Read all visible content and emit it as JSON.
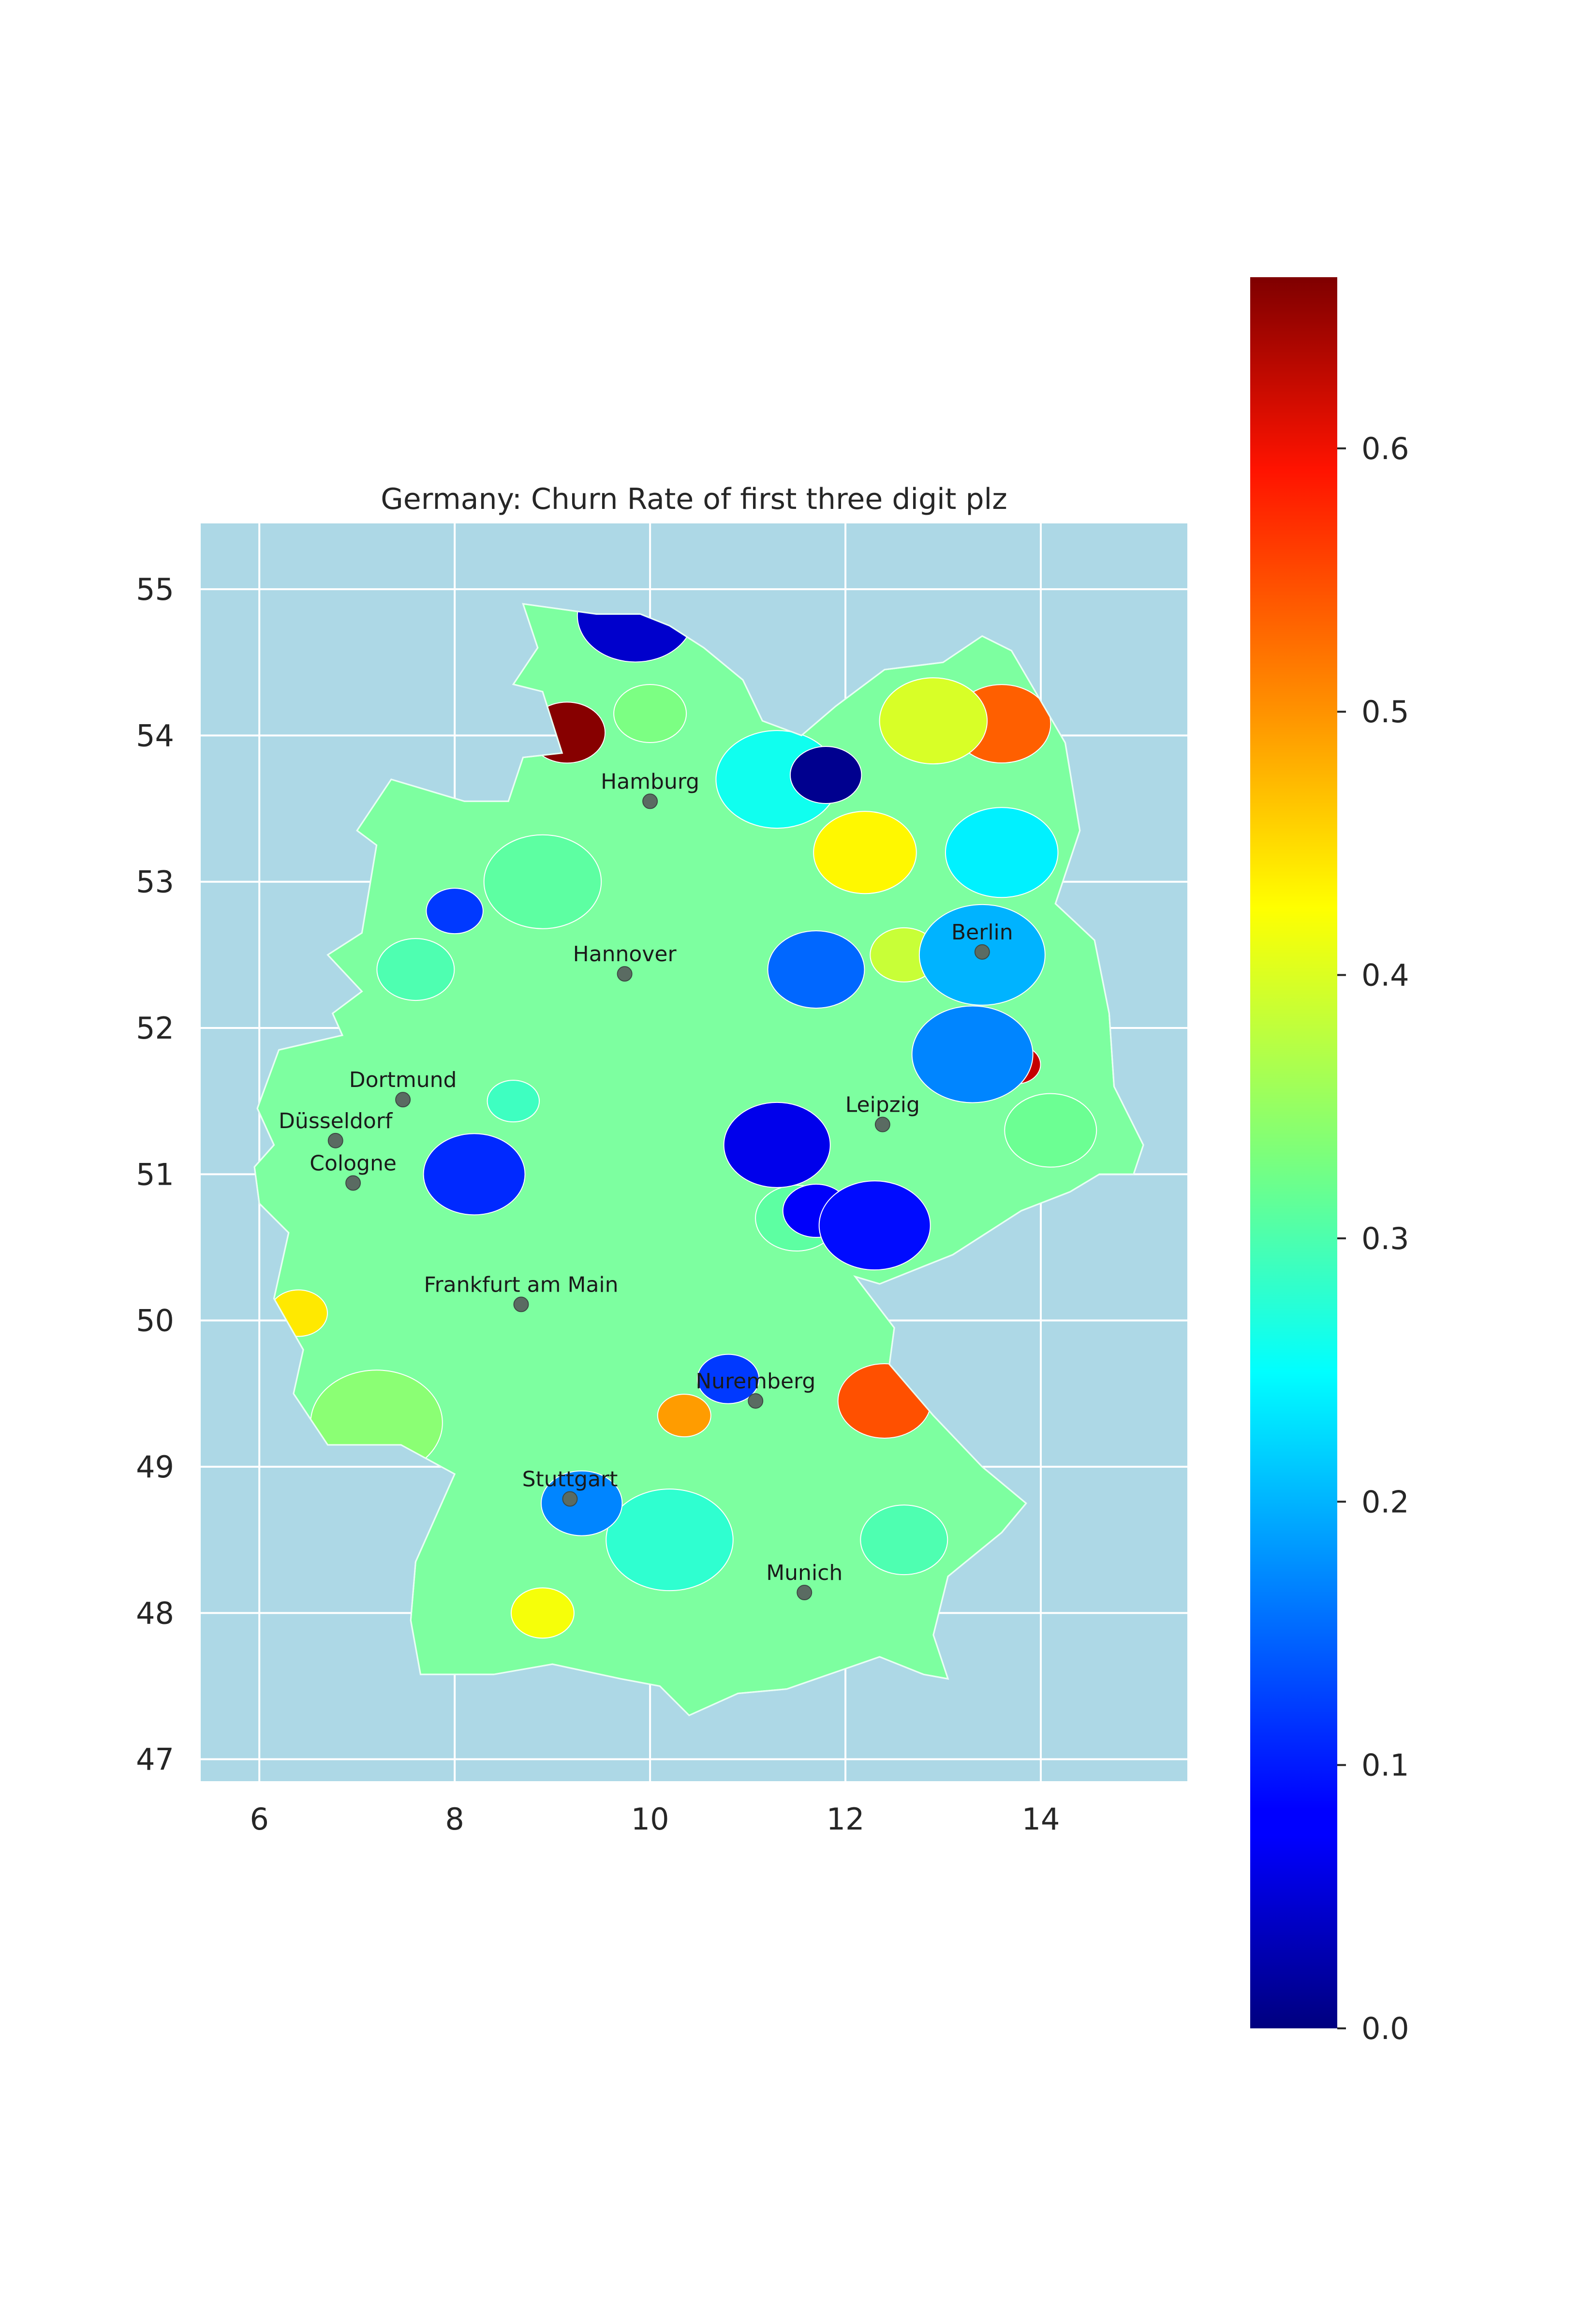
{
  "title": "Germany: Churn Rate of first three digit plz",
  "map": {
    "background": "#add8e6",
    "grid": true,
    "grid_color": "#ffffff",
    "xlim": [
      5.4,
      15.5
    ],
    "ylim": [
      46.85,
      55.45
    ],
    "x_ticks": [
      "6",
      "8",
      "10",
      "12",
      "14"
    ],
    "y_ticks": [
      "47",
      "48",
      "49",
      "50",
      "51",
      "52",
      "53",
      "54",
      "55"
    ]
  },
  "colorbar": {
    "colormap": "jet",
    "vmin": 0.0,
    "vmax": 0.665,
    "ticks": [
      "0.0",
      "0.1",
      "0.2",
      "0.3",
      "0.4",
      "0.5",
      "0.6"
    ]
  },
  "cities": [
    {
      "name": "Hamburg",
      "lon": 10.0,
      "lat": 53.55
    },
    {
      "name": "Berlin",
      "lon": 13.4,
      "lat": 52.52
    },
    {
      "name": "Hannover",
      "lon": 9.74,
      "lat": 52.37
    },
    {
      "name": "Dortmund",
      "lon": 7.47,
      "lat": 51.51
    },
    {
      "name": "Düsseldorf",
      "lon": 6.78,
      "lat": 51.23
    },
    {
      "name": "Leipzig",
      "lon": 12.38,
      "lat": 51.34
    },
    {
      "name": "Cologne",
      "lon": 6.96,
      "lat": 50.94
    },
    {
      "name": "Frankfurt am Main",
      "lon": 8.68,
      "lat": 50.11
    },
    {
      "name": "Nuremberg",
      "lon": 11.08,
      "lat": 49.45
    },
    {
      "name": "Stuttgart",
      "lon": 9.18,
      "lat": 48.78
    },
    {
      "name": "Munich",
      "lon": 11.58,
      "lat": 48.14
    }
  ],
  "regions_visible": [
    {
      "lon": 13.75,
      "lat": 51.75,
      "churn_rate": 0.62
    },
    {
      "lon": 12.4,
      "lat": 49.45,
      "churn_rate": 0.53
    },
    {
      "lon": 10.35,
      "lat": 49.35,
      "churn_rate": 0.48
    },
    {
      "lon": 13.6,
      "lat": 54.08,
      "churn_rate": 0.52
    },
    {
      "lon": 6.4,
      "lat": 50.05,
      "churn_rate": 0.43
    },
    {
      "lon": 12.2,
      "lat": 53.2,
      "churn_rate": 0.42
    },
    {
      "lon": 8.9,
      "lat": 48.0,
      "churn_rate": 0.41
    },
    {
      "lon": 12.9,
      "lat": 54.1,
      "churn_rate": 0.39
    },
    {
      "lon": 12.6,
      "lat": 52.5,
      "churn_rate": 0.38
    },
    {
      "lon": 13.6,
      "lat": 53.2,
      "churn_rate": 0.24
    },
    {
      "lon": 10.0,
      "lat": 54.15,
      "churn_rate": 0.33
    },
    {
      "lon": 8.9,
      "lat": 53.0,
      "churn_rate": 0.31
    },
    {
      "lon": 7.6,
      "lat": 52.4,
      "churn_rate": 0.3
    },
    {
      "lon": 11.3,
      "lat": 53.7,
      "churn_rate": 0.26
    },
    {
      "lon": 11.5,
      "lat": 50.7,
      "churn_rate": 0.31
    },
    {
      "lon": 10.2,
      "lat": 48.5,
      "churn_rate": 0.28
    },
    {
      "lon": 12.6,
      "lat": 48.5,
      "churn_rate": 0.3
    },
    {
      "lon": 7.2,
      "lat": 49.3,
      "churn_rate": 0.34
    },
    {
      "lon": 14.1,
      "lat": 51.3,
      "churn_rate": 0.32
    },
    {
      "lon": 8.6,
      "lat": 51.5,
      "churn_rate": 0.29
    },
    {
      "lon": 11.7,
      "lat": 52.4,
      "churn_rate": 0.15
    },
    {
      "lon": 8.0,
      "lat": 52.8,
      "churn_rate": 0.12
    },
    {
      "lon": 8.2,
      "lat": 51.0,
      "churn_rate": 0.11
    },
    {
      "lon": 10.8,
      "lat": 49.6,
      "churn_rate": 0.12
    },
    {
      "lon": 11.3,
      "lat": 51.2,
      "churn_rate": 0.07
    },
    {
      "lon": 11.7,
      "lat": 50.75,
      "churn_rate": 0.08
    },
    {
      "lon": 12.3,
      "lat": 50.65,
      "churn_rate": 0.09
    },
    {
      "lon": 11.8,
      "lat": 53.73,
      "churn_rate": 0.01
    },
    {
      "lon": 9.85,
      "lat": 54.82,
      "churn_rate": 0.05
    },
    {
      "lon": 9.15,
      "lat": 54.02,
      "churn_rate": 0.66
    },
    {
      "lon": 13.3,
      "lat": 51.82,
      "churn_rate": 0.17
    },
    {
      "lon": 9.3,
      "lat": 48.75,
      "churn_rate": 0.17
    },
    {
      "lon": 13.4,
      "lat": 52.5,
      "churn_rate": 0.2
    }
  ]
}
